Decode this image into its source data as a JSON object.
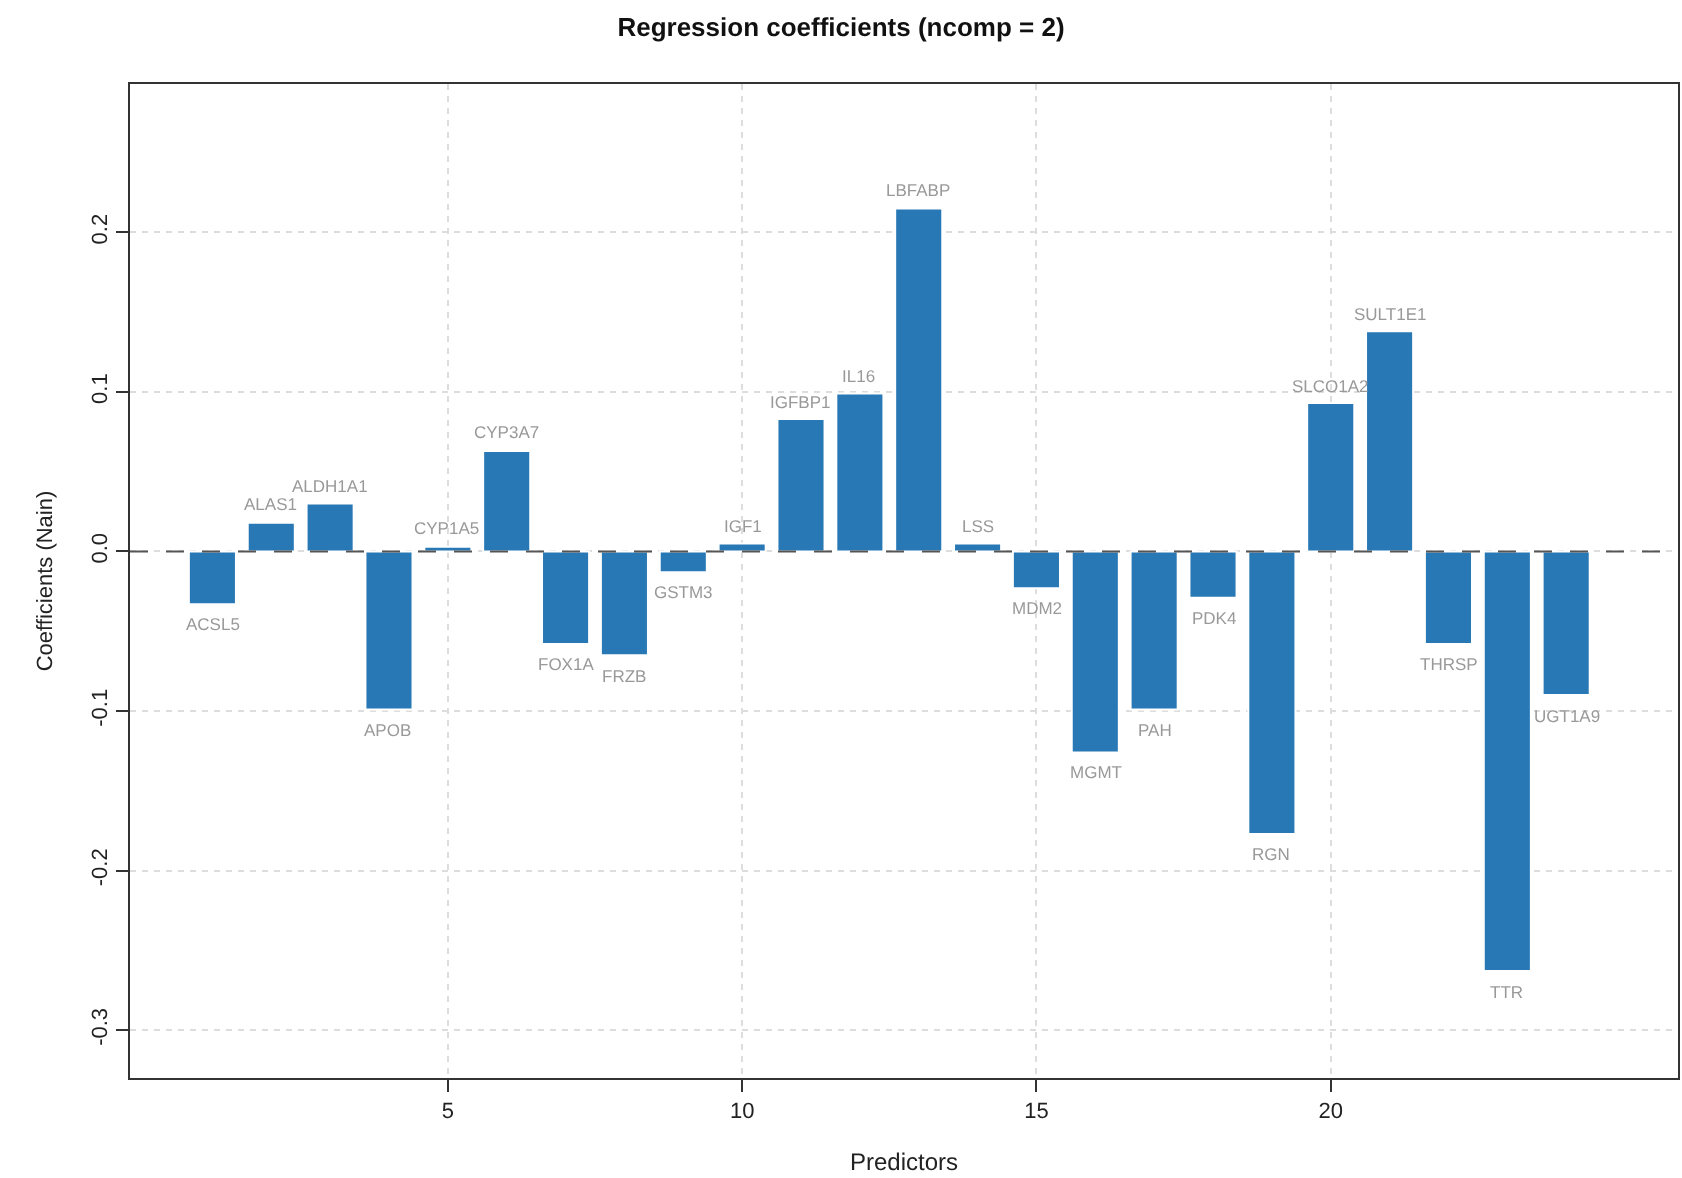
{
  "chart_data": {
    "type": "bar",
    "title": "Regression coefficients (ncomp = 2)",
    "xlabel": "Predictors",
    "ylabel": "Coefficients (Nain)",
    "x": [
      1,
      2,
      3,
      4,
      5,
      6,
      7,
      8,
      9,
      10,
      11,
      12,
      13,
      14,
      15,
      16,
      17,
      18,
      19,
      20,
      21,
      22,
      23,
      24
    ],
    "series": [
      {
        "color": "#2878b5",
        "values": [
          -0.033,
          0.018,
          0.03,
          -0.099,
          0.003,
          0.063,
          -0.058,
          -0.065,
          -0.013,
          0.005,
          0.083,
          0.099,
          0.215,
          0.005,
          -0.023,
          -0.126,
          -0.099,
          -0.029,
          -0.177,
          0.093,
          0.138,
          -0.058,
          -0.263,
          -0.09
        ]
      }
    ],
    "annotations": [
      {
        "text": "ACSL5",
        "x": 1,
        "y": -0.033
      },
      {
        "text": "ALAS1",
        "x": 2,
        "y": 0.018
      },
      {
        "text": "ALDH1A1",
        "x": 3,
        "y": 0.03
      },
      {
        "text": "APOB",
        "x": 4,
        "y": -0.099
      },
      {
        "text": "CYP1A5",
        "x": 5,
        "y": 0.003
      },
      {
        "text": "CYP3A7",
        "x": 6,
        "y": 0.063
      },
      {
        "text": "FOX1A",
        "x": 7,
        "y": -0.058
      },
      {
        "text": "FRZB",
        "x": 8,
        "y": -0.065
      },
      {
        "text": "GSTM3",
        "x": 9,
        "y": -0.013
      },
      {
        "text": "IGF1",
        "x": 10,
        "y": 0.005
      },
      {
        "text": "IGFBP1",
        "x": 11,
        "y": 0.083
      },
      {
        "text": "IL16",
        "x": 12,
        "y": 0.099
      },
      {
        "text": "LBFABP",
        "x": 13,
        "y": 0.215
      },
      {
        "text": "LSS",
        "x": 14,
        "y": 0.005
      },
      {
        "text": "MDM2",
        "x": 15,
        "y": -0.023
      },
      {
        "text": "MGMT",
        "x": 16,
        "y": -0.126
      },
      {
        "text": "PAH",
        "x": 17,
        "y": -0.099
      },
      {
        "text": "PDK4",
        "x": 18,
        "y": -0.029
      },
      {
        "text": "RGN",
        "x": 19,
        "y": -0.177
      },
      {
        "text": "SLCO1A2",
        "x": 20,
        "y": 0.093
      },
      {
        "text": "SULT1E1",
        "x": 21,
        "y": 0.138
      },
      {
        "text": "THRSP",
        "x": 22,
        "y": -0.058
      },
      {
        "text": "TTR",
        "x": 23,
        "y": -0.263
      },
      {
        "text": "UGT1A9",
        "x": 24,
        "y": -0.09
      }
    ],
    "xlim": [
      -0.4,
      25.9
    ],
    "ylim": [
      -0.33,
      0.293
    ],
    "xticks": [
      5,
      10,
      15,
      20
    ],
    "yticks": [
      {
        "value": -0.3,
        "label": "-0.3"
      },
      {
        "value": -0.2,
        "label": "-0.2"
      },
      {
        "value": -0.1,
        "label": "-0.1"
      },
      {
        "value": 0,
        "label": "0.0"
      },
      {
        "value": 0.1,
        "label": "0.1"
      },
      {
        "value": 0.2,
        "label": "0.2"
      }
    ],
    "ref_lines": [
      {
        "axis": "y",
        "value": 0,
        "color": "#555555",
        "line_style": "dashed"
      }
    ],
    "grid": true
  }
}
